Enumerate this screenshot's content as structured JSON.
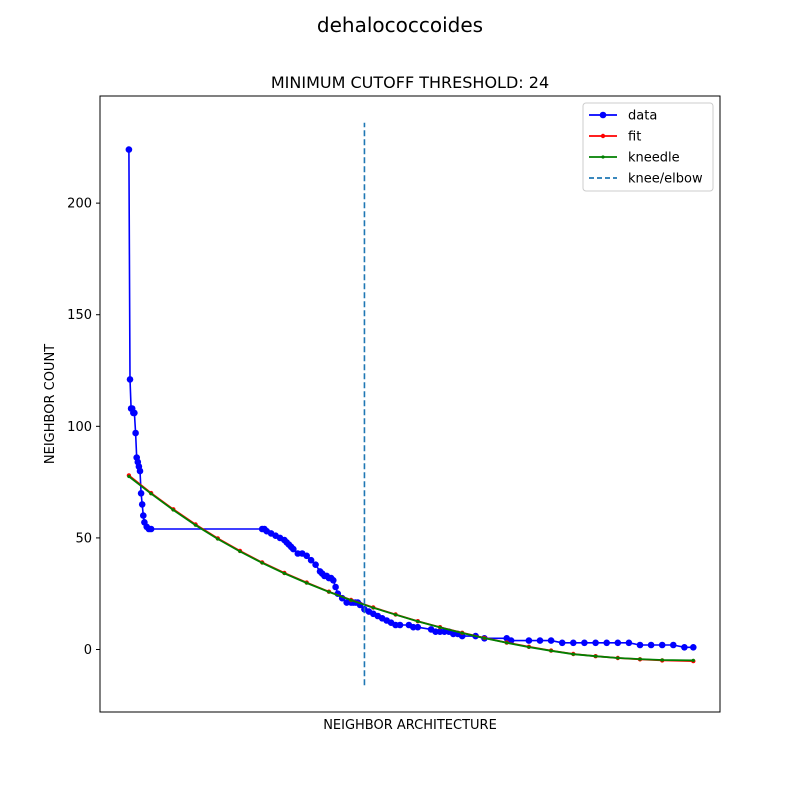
{
  "chart_data": {
    "type": "line",
    "suptitle": "dehalococcoides",
    "title": "MINIMUM CUTOFF THRESHOLD: 24",
    "xlabel": "NEIGHBOR ARCHITECTURE",
    "ylabel": "NEIGHBOR COUNT",
    "xlim": [
      -13,
      266
    ],
    "ylim": [
      -28,
      248
    ],
    "y_ticks": [
      0,
      50,
      100,
      150,
      200
    ],
    "show_x_ticks": false,
    "grid": false,
    "legend": {
      "location": "top-right",
      "entries": [
        "data",
        "fit",
        "kneedle",
        "knee/elbow"
      ]
    },
    "knee": {
      "x": 106,
      "y_range": [
        -16,
        236
      ],
      "color": "#1f77b4"
    },
    "series": [
      {
        "name": "data",
        "color": "#0000ff",
        "marker": "circle",
        "x": [
          0,
          0.5,
          1,
          1.5,
          2,
          2.5,
          3,
          3.5,
          4,
          4.5,
          5,
          5.5,
          6,
          6.5,
          7,
          8,
          9,
          10,
          60,
          61,
          62,
          64,
          66,
          68,
          70,
          71,
          72,
          73,
          74,
          76,
          78,
          80,
          82,
          84,
          86,
          87,
          88,
          89,
          90,
          91,
          92,
          93,
          94,
          96,
          98,
          100,
          101,
          102,
          103,
          104,
          106,
          108,
          110,
          112,
          114,
          116,
          118,
          120,
          122,
          126,
          128,
          130,
          136,
          138,
          140,
          142,
          144,
          146,
          148,
          150,
          156,
          160,
          170,
          172,
          180,
          185,
          190,
          195,
          200,
          205,
          210,
          215,
          220,
          225,
          230,
          235,
          240,
          245,
          250,
          254
        ],
        "y": [
          224,
          121,
          108,
          108,
          106,
          106,
          97,
          86,
          84,
          82,
          80,
          70,
          65,
          60,
          57,
          55,
          54,
          54,
          54,
          54,
          53,
          52,
          51,
          50,
          49,
          48,
          47,
          46,
          45,
          43,
          43,
          42,
          40,
          38,
          35,
          34,
          33,
          33,
          32,
          32,
          31,
          28,
          25,
          23,
          21,
          21,
          21,
          21,
          21,
          20,
          18,
          17,
          16,
          15,
          14,
          13,
          12,
          11,
          11,
          11,
          10,
          10,
          9,
          8,
          8,
          8,
          8,
          7,
          7,
          6,
          6,
          5,
          5,
          4,
          4,
          4,
          4,
          3,
          3,
          3,
          3,
          3,
          3,
          3,
          2,
          2,
          2,
          2,
          1,
          1
        ]
      },
      {
        "name": "fit",
        "color": "#ff0000",
        "marker": "dot",
        "x": [
          0,
          10,
          20,
          30,
          40,
          50,
          60,
          70,
          80,
          90,
          100,
          110,
          120,
          130,
          140,
          150,
          160,
          170,
          180,
          190,
          200,
          210,
          220,
          230,
          240,
          254
        ],
        "y": [
          78,
          70.1,
          62.8,
          56.0,
          49.8,
          44.2,
          39.0,
          34.3,
          30.0,
          25.9,
          22.2,
          18.8,
          15.7,
          12.7,
          10.0,
          7.5,
          5.2,
          3.1,
          1.2,
          -0.5,
          -2.0,
          -3.0,
          -3.8,
          -4.4,
          -4.9,
          -5.2
        ]
      },
      {
        "name": "kneedle",
        "color": "#008000",
        "marker": "small-dot",
        "x": [
          0,
          10,
          20,
          30,
          40,
          50,
          60,
          70,
          80,
          90,
          100,
          110,
          120,
          130,
          140,
          150,
          160,
          170,
          180,
          190,
          200,
          210,
          220,
          230,
          240,
          254
        ],
        "y": [
          77.5,
          69.8,
          62.5,
          55.7,
          49.5,
          43.9,
          38.8,
          34.1,
          29.8,
          25.8,
          22.1,
          18.7,
          15.6,
          12.6,
          9.9,
          7.4,
          5.1,
          3.0,
          1.1,
          -0.6,
          -2.1,
          -3.0,
          -3.8,
          -4.3,
          -4.7,
          -4.9
        ]
      }
    ]
  }
}
